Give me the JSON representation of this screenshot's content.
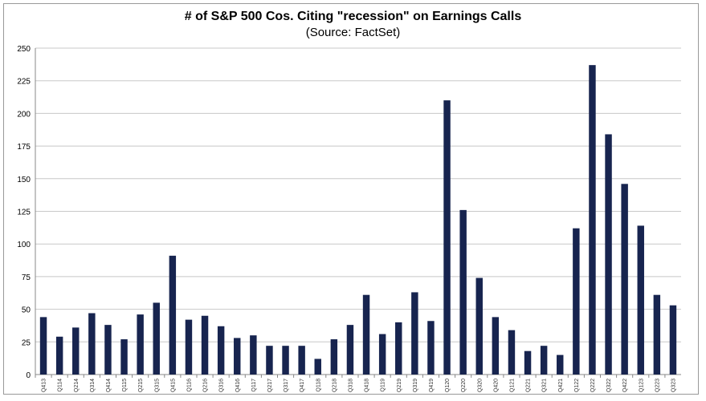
{
  "chart_data": {
    "type": "bar",
    "title": "# of S&P 500 Cos. Citing \"recession\" on Earnings Calls",
    "subtitle": "(Source: FactSet)",
    "xlabel": "",
    "ylabel": "",
    "ylim": [
      0,
      250
    ],
    "yticks": [
      0,
      25,
      50,
      75,
      100,
      125,
      150,
      175,
      200,
      225,
      250
    ],
    "grid": true,
    "bar_color": "#17244f",
    "categories": [
      "Q413",
      "Q114",
      "Q214",
      "Q314",
      "Q414",
      "Q115",
      "Q215",
      "Q315",
      "Q415",
      "Q116",
      "Q216",
      "Q316",
      "Q416",
      "Q117",
      "Q217",
      "Q317",
      "Q417",
      "Q118",
      "Q218",
      "Q318",
      "Q418",
      "Q119",
      "Q219",
      "Q319",
      "Q419",
      "Q120",
      "Q220",
      "Q320",
      "Q420",
      "Q121",
      "Q221",
      "Q321",
      "Q421",
      "Q122",
      "Q222",
      "Q322",
      "Q422",
      "Q123",
      "Q223",
      "Q323"
    ],
    "values": [
      44,
      29,
      36,
      47,
      38,
      27,
      46,
      55,
      91,
      42,
      45,
      37,
      28,
      30,
      22,
      22,
      22,
      12,
      27,
      38,
      61,
      31,
      40,
      63,
      41,
      210,
      126,
      74,
      44,
      34,
      18,
      22,
      15,
      112,
      237,
      184,
      146,
      114,
      61,
      53
    ]
  }
}
